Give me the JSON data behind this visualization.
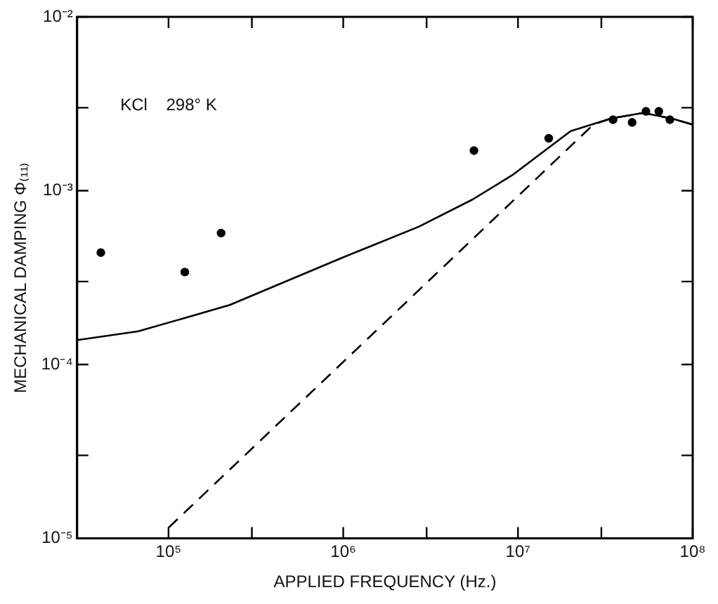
{
  "chart_data": {
    "type": "line",
    "xlabel": "APPLIED FREQUENCY (Hz.)",
    "ylabel": "MECHANICAL DAMPING Φ₍₁₁₎",
    "log": "xy",
    "grid": false,
    "legend": false,
    "xlim": [
      30000,
      100000000
    ],
    "ylim": [
      1e-05,
      0.01
    ],
    "xticks": [
      {
        "value": 100000,
        "label": "10⁵"
      },
      {
        "value": 300000,
        "label": null
      },
      {
        "value": 1000000,
        "label": "10⁶"
      },
      {
        "value": 3000000,
        "label": null
      },
      {
        "value": 10000000,
        "label": "10⁷"
      },
      {
        "value": 30000000,
        "label": null
      },
      {
        "value": 100000000,
        "label": "10⁸"
      }
    ],
    "yticks": [
      {
        "value": 1e-05,
        "label": "10⁻⁵"
      },
      {
        "value": 3e-05,
        "label": null
      },
      {
        "value": 0.0001,
        "label": "10⁻⁴"
      },
      {
        "value": 0.0003,
        "label": null
      },
      {
        "value": 0.001,
        "label": "10⁻³"
      },
      {
        "value": 0.003,
        "label": null
      },
      {
        "value": 0.01,
        "label": "10⁻²"
      }
    ],
    "annotations": [
      "KCl    298° K"
    ],
    "series": [
      {
        "type": "scatter",
        "color": "#000000",
        "marker": "circle",
        "x": [
          41000,
          124000,
          200000,
          5600000,
          15000000,
          35000000,
          45000000,
          54000000,
          64000000,
          74000000
        ],
        "values": [
          0.00044,
          0.00034,
          0.00057,
          0.0017,
          0.002,
          0.00256,
          0.00247,
          0.00286,
          0.00286,
          0.00256
        ]
      },
      {
        "type": "line",
        "color": "#000000",
        "marker": "none",
        "line_style": "solid",
        "x": [
          30000,
          67000,
          126000,
          224000,
          980000,
          2700000,
          5500000,
          9300000,
          20000000,
          34000000,
          52000000,
          76000000,
          100000000
        ],
        "values": [
          0.000138,
          0.000155,
          0.000186,
          0.00022,
          0.00041,
          0.00062,
          0.00089,
          0.00123,
          0.0022,
          0.0026,
          0.0028,
          0.0026,
          0.0024
        ]
      },
      {
        "type": "line",
        "color": "#000000",
        "marker": "none",
        "line_style": "dashed",
        "x": [
          100000,
          27000000,
          34000000,
          52000000,
          76000000,
          100000000
        ],
        "values": [
          1.15e-05,
          0.0024,
          0.0026,
          0.0028,
          0.0026,
          0.0024
        ]
      }
    ]
  }
}
